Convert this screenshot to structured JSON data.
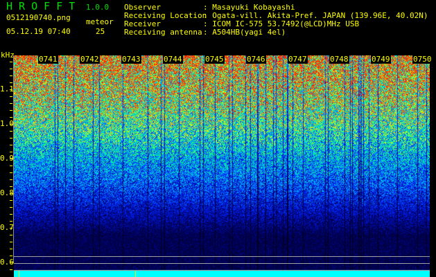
{
  "app": {
    "name": "H R O F F T",
    "version": "1.0.0"
  },
  "file": {
    "name": "0512190740.png",
    "datetime": "05.12.19 07:40"
  },
  "meteor": {
    "label": "meteor",
    "count": "25"
  },
  "info": [
    {
      "label": "Observer",
      "value": ": Masayuki Kobayashi"
    },
    {
      "label": "Receiving Location",
      "value": ": Ogata-vill. Akita-Pref. JAPAN (139.96E, 40.02N)"
    },
    {
      "label": "Receiver",
      "value": ": ICOM IC-575 53.7492(@LCD)MHz USB"
    },
    {
      "label": "Receiving antenna",
      "value": ": A504HB(yagi 4el)"
    }
  ],
  "spectrogram": {
    "y_unit": "kHz",
    "y_ticks": [
      "1.1",
      "1.0",
      "0.9",
      "0.8",
      "0.7",
      "0.6"
    ],
    "time_labels": [
      "0741",
      "0742",
      "0743",
      "0744",
      "0745",
      "0746",
      "0747",
      "0748",
      "0749",
      "0750"
    ],
    "colormap": [
      "#000000",
      "#000060",
      "#0020ff",
      "#00c0ff",
      "#00ff80",
      "#ffff00",
      "#ff2000"
    ]
  }
}
